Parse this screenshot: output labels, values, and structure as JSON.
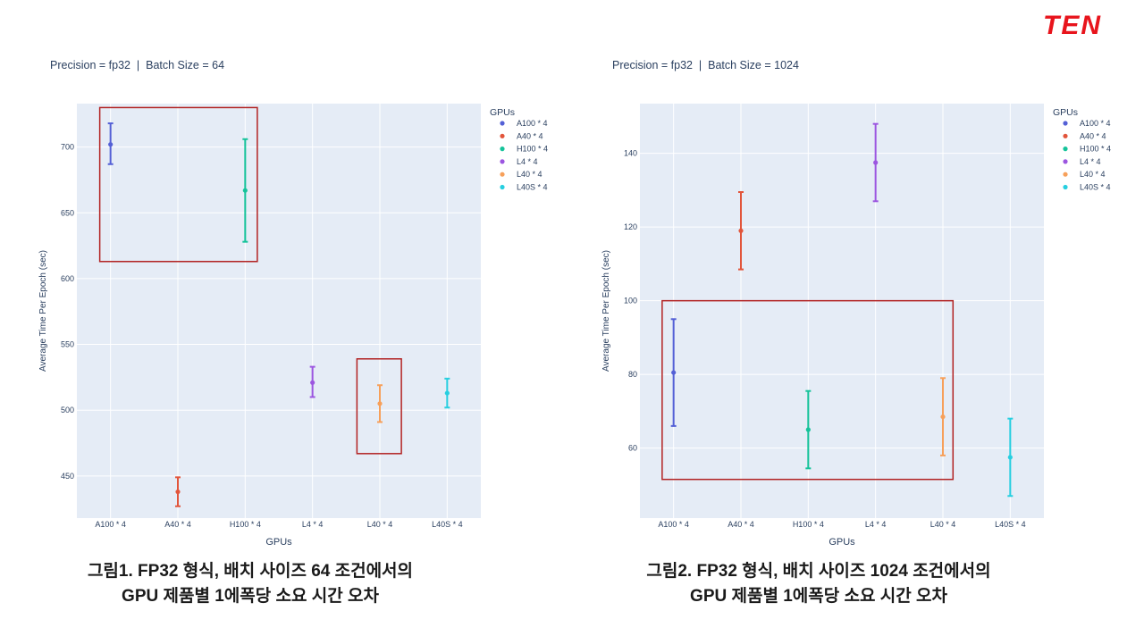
{
  "brand": {
    "logo_text": "TEN",
    "logo_color": "#e8141c"
  },
  "colors": {
    "plot_bg": "#e5ecf6",
    "grid": "#ffffff",
    "axis_text": "#2a3f5f",
    "highlight": "#b22222",
    "series": {
      "A100 * 4": "#5460d6",
      "A40 * 4": "#e2553b",
      "H100 * 4": "#15c39a",
      "L4 * 4": "#9c56e0",
      "L40 * 4": "#f7a05a",
      "L40S * 4": "#27cfe0"
    }
  },
  "chart_data": [
    {
      "type": "scatter",
      "subtitle": "Precision = fp32  |  Batch Size = 64",
      "xlabel": "GPUs",
      "ylabel": "Average Time Per Epoch (sec)",
      "legend_title": "GPUs",
      "legend_position": "top-right",
      "categories": [
        "A100 * 4",
        "A40 * 4",
        "H100 * 4",
        "L4 * 4",
        "L40 * 4",
        "L40S * 4"
      ],
      "yticks": [
        450,
        500,
        550,
        600,
        650,
        700
      ],
      "ylim": [
        418,
        733
      ],
      "grid": true,
      "points": [
        {
          "name": "A100 * 4",
          "y": 702,
          "err_low": 687,
          "err_high": 718
        },
        {
          "name": "A40 * 4",
          "y": 438,
          "err_low": 427,
          "err_high": 449
        },
        {
          "name": "H100 * 4",
          "y": 667,
          "err_low": 628,
          "err_high": 706
        },
        {
          "name": "L4 * 4",
          "y": 521,
          "err_low": 510,
          "err_high": 533
        },
        {
          "name": "L40 * 4",
          "y": 505,
          "err_low": 491,
          "err_high": 519
        },
        {
          "name": "L40S * 4",
          "y": 513,
          "err_low": 502,
          "err_high": 524
        }
      ],
      "highlight_boxes": [
        {
          "x_from": -0.16,
          "x_to": 2.18,
          "y_from": 613,
          "y_to": 730
        },
        {
          "x_from": 3.66,
          "x_to": 4.32,
          "y_from": 467,
          "y_to": 539
        }
      ],
      "caption_lines": [
        "그림1. FP32 형식, 배치 사이즈 64 조건에서의",
        "GPU 제품별 1에폭당 소요 시간 오차"
      ]
    },
    {
      "type": "scatter",
      "subtitle": "Precision = fp32  |  Batch Size = 1024",
      "xlabel": "GPUs",
      "ylabel": "Average Time Per Epoch (sec)",
      "legend_title": "GPUs",
      "legend_position": "top-right",
      "categories": [
        "A100 * 4",
        "A40 * 4",
        "H100 * 4",
        "L4 * 4",
        "L40 * 4",
        "L40S * 4"
      ],
      "yticks": [
        60,
        80,
        100,
        120,
        140
      ],
      "ylim": [
        41,
        153.5
      ],
      "grid": true,
      "points": [
        {
          "name": "A100 * 4",
          "y": 80.5,
          "err_low": 66,
          "err_high": 95
        },
        {
          "name": "A40 * 4",
          "y": 119,
          "err_low": 108.5,
          "err_high": 129.5
        },
        {
          "name": "H100 * 4",
          "y": 65,
          "err_low": 54.5,
          "err_high": 75.5
        },
        {
          "name": "L4 * 4",
          "y": 137.5,
          "err_low": 127,
          "err_high": 148
        },
        {
          "name": "L40 * 4",
          "y": 68.5,
          "err_low": 58,
          "err_high": 79
        },
        {
          "name": "L40S * 4",
          "y": 57.5,
          "err_low": 47,
          "err_high": 68
        }
      ],
      "highlight_boxes": [
        {
          "x_from": -0.17,
          "x_to": 4.15,
          "y_from": 51.5,
          "y_to": 100
        }
      ],
      "caption_lines": [
        "그림2. FP32 형식, 배치 사이즈 1024 조건에서의",
        "GPU 제품별 1에폭당 소요 시간 오차"
      ]
    }
  ]
}
